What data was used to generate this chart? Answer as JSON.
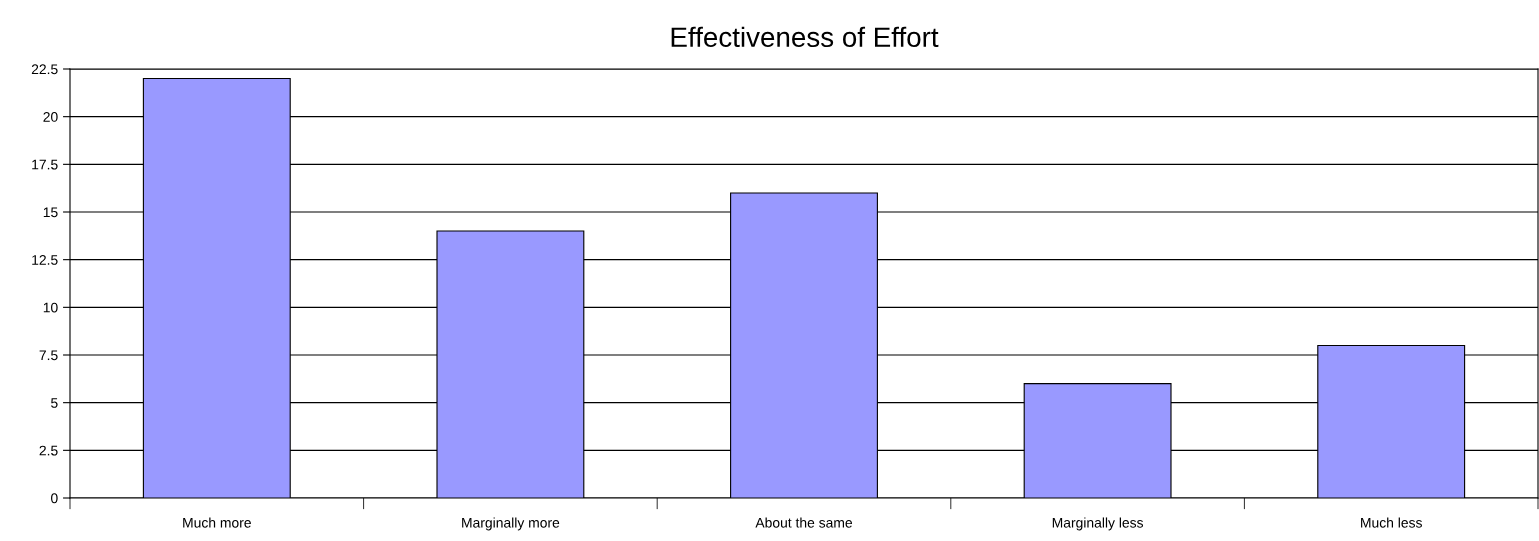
{
  "chart_data": {
    "type": "bar",
    "title": "Effectiveness of Effort",
    "categories": [
      "Much more",
      "Marginally more",
      "About the same",
      "Marginally less",
      "Much less"
    ],
    "values": [
      22,
      14,
      16,
      6,
      8
    ],
    "color": "#9999ff",
    "ylim": [
      0,
      22.5
    ],
    "yticks": [
      0,
      2.5,
      5,
      7.5,
      10,
      12.5,
      15,
      17.5,
      20,
      22.5
    ],
    "grid": "y"
  }
}
